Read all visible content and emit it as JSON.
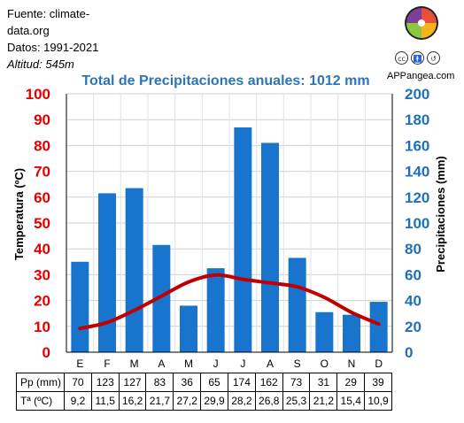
{
  "meta": {
    "source_line1": "Fuente: climate-",
    "source_line2": "data.org",
    "dates": "Datos: 1991-2021",
    "altitude": "Altitud: 545m"
  },
  "brand": {
    "name": "APPangea.com",
    "cc_icons": [
      "cc",
      "by",
      "sa"
    ]
  },
  "colors": {
    "bars": "#1874cd",
    "line": "#c00000",
    "left_axis": "#e00000",
    "right_axis": "#1f6fbf",
    "title": "#2e75b6"
  },
  "chart_data": {
    "type": "bar",
    "title": "Total de Precipitaciones anuales: 1012 mm",
    "categories": [
      "E",
      "F",
      "M",
      "A",
      "M",
      "J",
      "J",
      "A",
      "S",
      "O",
      "N",
      "D"
    ],
    "series": [
      {
        "name": "Pp (mm)",
        "type": "bar",
        "axis": "right",
        "values": [
          70,
          123,
          127,
          83,
          36,
          65,
          174,
          162,
          73,
          31,
          29,
          39
        ]
      },
      {
        "name": "Tª (ºC)",
        "type": "line",
        "axis": "left",
        "values": [
          9.2,
          11.5,
          16.2,
          21.7,
          27.2,
          29.9,
          28.2,
          26.8,
          25.3,
          21.2,
          15.4,
          10.9
        ]
      }
    ],
    "y_left": {
      "label": "Temperatura (ºC)",
      "range": [
        0,
        100
      ],
      "ticks": [
        "0",
        "10",
        "20",
        "30",
        "40",
        "50",
        "60",
        "70",
        "80",
        "90",
        "100"
      ]
    },
    "y_right": {
      "label": "Precipitaciones (mm)",
      "range": [
        0,
        200
      ],
      "ticks": [
        "0",
        "20",
        "40",
        "60",
        "80",
        "100",
        "120",
        "140",
        "160",
        "180",
        "200"
      ]
    },
    "table": {
      "rows": [
        {
          "label": "Pp (mm)",
          "cells": [
            "70",
            "123",
            "127",
            "83",
            "36",
            "65",
            "174",
            "162",
            "73",
            "31",
            "29",
            "39"
          ]
        },
        {
          "label": "Tª (ºC)",
          "cells": [
            "9,2",
            "11,5",
            "16,2",
            "21,7",
            "27,2",
            "29,9",
            "28,2",
            "26,8",
            "25,3",
            "21,2",
            "15,4",
            "10,9"
          ]
        }
      ]
    },
    "grid": true
  }
}
